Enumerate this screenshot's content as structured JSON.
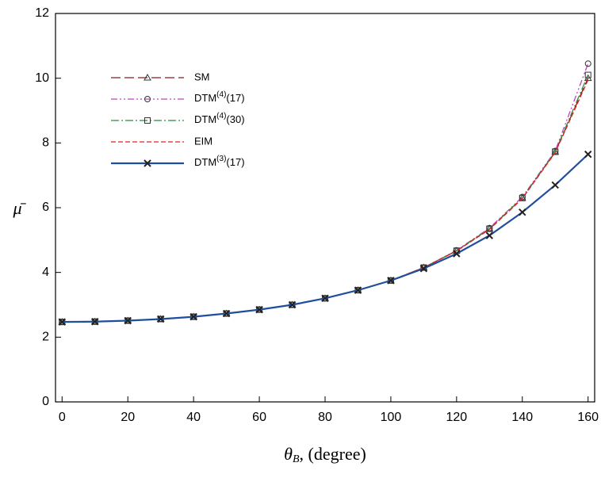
{
  "chart_data": {
    "type": "line",
    "x_label": "θB, (degree)",
    "y_label": "μ̄",
    "x": [
      0,
      10,
      20,
      30,
      40,
      50,
      60,
      70,
      80,
      90,
      100,
      110,
      120,
      130,
      140,
      150,
      160
    ],
    "series": [
      {
        "name": "SM",
        "color": "#8b1a1a",
        "dash": "12,5",
        "marker": "triangle",
        "values": [
          2.47,
          2.48,
          2.51,
          2.56,
          2.63,
          2.73,
          2.85,
          3.0,
          3.2,
          3.45,
          3.75,
          4.15,
          4.67,
          5.35,
          6.3,
          7.72,
          10.0
        ]
      },
      {
        "name": "DTM(4)(17)",
        "color": "#c040c0",
        "dash": "8,3,2,3,2,3",
        "marker": "circle",
        "values": [
          2.47,
          2.48,
          2.51,
          2.56,
          2.63,
          2.73,
          2.85,
          3.0,
          3.2,
          3.45,
          3.75,
          4.15,
          4.68,
          5.37,
          6.33,
          7.75,
          10.45
        ]
      },
      {
        "name": "DTM(4)(30)",
        "color": "#2e8b3e",
        "dash": "10,3,2,3",
        "marker": "square",
        "values": [
          2.47,
          2.48,
          2.51,
          2.56,
          2.63,
          2.73,
          2.85,
          3.0,
          3.2,
          3.45,
          3.75,
          4.15,
          4.67,
          5.35,
          6.3,
          7.73,
          10.1
        ]
      },
      {
        "name": "EIM",
        "color": "#e02020",
        "dash": "6,3",
        "marker": "none",
        "values": [
          2.47,
          2.48,
          2.51,
          2.56,
          2.63,
          2.73,
          2.85,
          3.0,
          3.2,
          3.45,
          3.75,
          4.15,
          4.66,
          5.33,
          6.28,
          7.7,
          9.95
        ]
      },
      {
        "name": "DTM(3)(17)",
        "color": "#1f4e9c",
        "dash": "none",
        "marker": "cross",
        "values": [
          2.47,
          2.48,
          2.51,
          2.56,
          2.63,
          2.73,
          2.85,
          3.0,
          3.2,
          3.45,
          3.75,
          4.12,
          4.58,
          5.14,
          5.86,
          6.7,
          7.65
        ]
      }
    ],
    "xlim": [
      -2,
      162
    ],
    "ylim": [
      0,
      12
    ],
    "xticks": [
      0,
      20,
      40,
      60,
      80,
      100,
      120,
      140,
      160
    ],
    "yticks": [
      0,
      2,
      4,
      6,
      8,
      10,
      12
    ],
    "legend": "upper left"
  }
}
